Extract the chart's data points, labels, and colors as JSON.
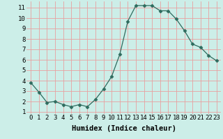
{
  "x": [
    0,
    1,
    2,
    3,
    4,
    5,
    6,
    7,
    8,
    9,
    10,
    11,
    12,
    13,
    14,
    15,
    16,
    17,
    18,
    19,
    20,
    21,
    22,
    23
  ],
  "y": [
    3.8,
    2.9,
    1.9,
    2.0,
    1.7,
    1.5,
    1.7,
    1.5,
    2.2,
    3.2,
    4.4,
    6.5,
    9.7,
    11.2,
    11.2,
    11.2,
    10.7,
    10.7,
    9.9,
    8.8,
    7.5,
    7.2,
    6.4,
    5.9
  ],
  "xlabel": "Humidex (Indice chaleur)",
  "xlim": [
    -0.5,
    23.5
  ],
  "ylim": [
    0.8,
    11.6
  ],
  "xtick_labels": [
    "0",
    "1",
    "2",
    "3",
    "4",
    "5",
    "6",
    "7",
    "8",
    "9",
    "10",
    "11",
    "12",
    "13",
    "14",
    "15",
    "16",
    "17",
    "18",
    "19",
    "20",
    "21",
    "22",
    "23"
  ],
  "ytick_labels": [
    "1",
    "2",
    "3",
    "4",
    "5",
    "6",
    "7",
    "8",
    "9",
    "10",
    "11"
  ],
  "ytick_values": [
    1,
    2,
    3,
    4,
    5,
    6,
    7,
    8,
    9,
    10,
    11
  ],
  "line_color": "#2e6b5e",
  "marker": "D",
  "marker_size": 2.5,
  "bg_color": "#cceee8",
  "grid_color": "#e8a0a0",
  "xlabel_fontsize": 7.5,
  "tick_fontsize": 6.5
}
